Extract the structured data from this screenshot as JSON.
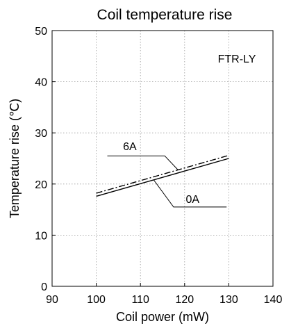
{
  "chart_data": {
    "type": "line",
    "title": "Coil temperature rise",
    "xlabel": "Coil power (mW)",
    "ylabel": "Temperature rise (℃)",
    "xlim": [
      90,
      140
    ],
    "ylim": [
      0,
      50
    ],
    "xticks": [
      90,
      100,
      110,
      120,
      130,
      140
    ],
    "yticks": [
      0,
      10,
      20,
      30,
      40,
      50
    ],
    "grid": true,
    "model_label": "FTR-LY",
    "series": [
      {
        "name": "6A",
        "style": "dash-dot",
        "color": "#000000",
        "x": [
          100,
          130
        ],
        "y": [
          18.2,
          25.6
        ]
      },
      {
        "name": "0A",
        "style": "solid",
        "color": "#000000",
        "x": [
          100,
          130
        ],
        "y": [
          17.6,
          25.0
        ]
      }
    ]
  }
}
